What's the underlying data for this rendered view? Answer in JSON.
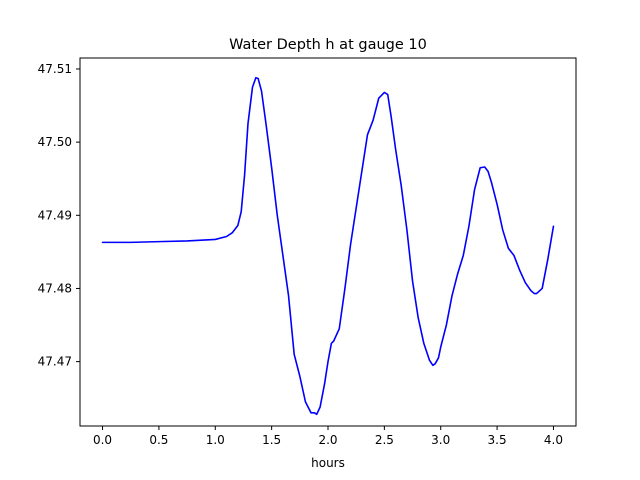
{
  "chart_data": {
    "type": "line",
    "title": "Water Depth h at gauge 10",
    "xlabel": "hours",
    "ylabel": "",
    "xlim": [
      -0.2,
      4.2
    ],
    "ylim": [
      47.4612,
      47.5115
    ],
    "xticks": [
      0.0,
      0.5,
      1.0,
      1.5,
      2.0,
      2.5,
      3.0,
      3.5,
      4.0
    ],
    "xtick_labels": [
      "0.0",
      "0.5",
      "1.0",
      "1.5",
      "2.0",
      "2.5",
      "3.0",
      "3.5",
      "4.0"
    ],
    "yticks": [
      47.47,
      47.48,
      47.49,
      47.5,
      47.51
    ],
    "ytick_labels": [
      "47.47",
      "47.48",
      "47.49",
      "47.50",
      "47.51"
    ],
    "grid": false,
    "line_color": "#0000ff",
    "series": [
      {
        "x": [
          0.0,
          0.25,
          0.5,
          0.75,
          1.0,
          1.1,
          1.15,
          1.2,
          1.23,
          1.26,
          1.29,
          1.33,
          1.36,
          1.38,
          1.41,
          1.45,
          1.5,
          1.55,
          1.6,
          1.65,
          1.7,
          1.75,
          1.8,
          1.85,
          1.88,
          1.9,
          1.93,
          1.97,
          2.0,
          2.03,
          2.05,
          2.1,
          2.15,
          2.2,
          2.25,
          2.3,
          2.35,
          2.38,
          2.4,
          2.45,
          2.5,
          2.53,
          2.56,
          2.6,
          2.65,
          2.7,
          2.75,
          2.8,
          2.85,
          2.9,
          2.93,
          2.95,
          2.98,
          3.0,
          3.05,
          3.1,
          3.15,
          3.2,
          3.25,
          3.3,
          3.35,
          3.39,
          3.42,
          3.45,
          3.5,
          3.55,
          3.6,
          3.65,
          3.7,
          3.75,
          3.8,
          3.83,
          3.85,
          3.9,
          3.95,
          4.0
        ],
        "y": [
          47.4863,
          47.4863,
          47.4864,
          47.4865,
          47.4867,
          47.4871,
          47.4876,
          47.4886,
          47.4905,
          47.4955,
          47.5025,
          47.5075,
          47.5088,
          47.5087,
          47.507,
          47.5025,
          47.4965,
          47.49,
          47.4845,
          47.479,
          47.471,
          47.468,
          47.4645,
          47.463,
          47.463,
          47.4628,
          47.4638,
          47.467,
          47.47,
          47.4725,
          47.4728,
          47.4745,
          47.48,
          47.486,
          47.491,
          47.496,
          47.501,
          47.5022,
          47.503,
          47.506,
          47.5068,
          47.5065,
          47.5035,
          47.499,
          47.494,
          47.488,
          47.481,
          47.476,
          47.4725,
          47.4702,
          47.4695,
          47.4697,
          47.4705,
          47.472,
          47.475,
          47.479,
          47.482,
          47.4845,
          47.4885,
          47.4935,
          47.4965,
          47.4966,
          47.496,
          47.4945,
          47.4915,
          47.488,
          47.4855,
          47.4845,
          47.4825,
          47.4808,
          47.4797,
          47.4793,
          47.4793,
          47.48,
          47.484,
          47.4885
        ]
      }
    ]
  }
}
